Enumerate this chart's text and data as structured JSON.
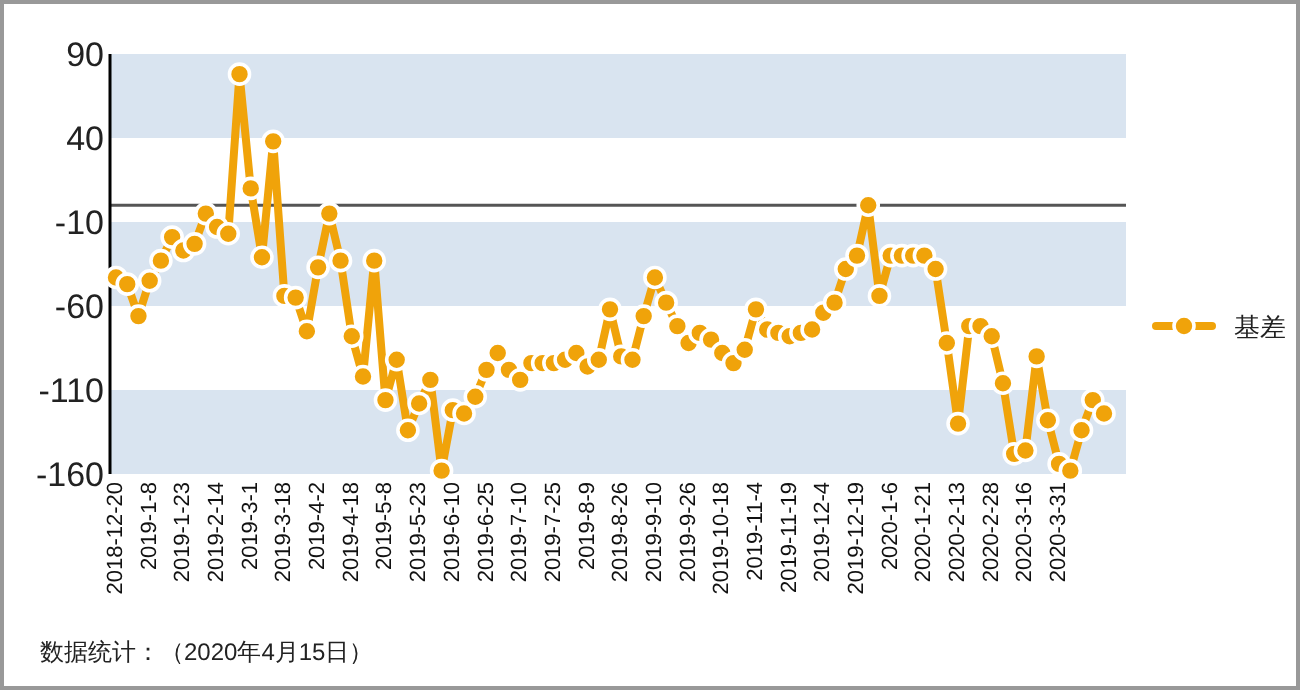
{
  "chart_data": {
    "type": "line",
    "categories": [
      "2018-12-20",
      null,
      null,
      "2019-1-8",
      null,
      null,
      "2019-1-23",
      null,
      null,
      "2019-2-14",
      null,
      null,
      "2019-3-1",
      null,
      null,
      "2019-3-18",
      null,
      null,
      "2019-4-2",
      null,
      null,
      "2019-4-18",
      null,
      null,
      "2019-5-8",
      null,
      null,
      "2019-5-23",
      null,
      null,
      "2019-6-10",
      null,
      null,
      "2019-6-25",
      null,
      null,
      "2019-7-10",
      null,
      null,
      "2019-7-25",
      null,
      null,
      "2019-8-9",
      null,
      null,
      "2019-8-26",
      null,
      null,
      "2019-9-10",
      null,
      null,
      "2019-9-26",
      null,
      null,
      "2019-10-18",
      null,
      null,
      "2019-11-4",
      null,
      null,
      "2019-11-19",
      null,
      null,
      "2019-12-4",
      null,
      null,
      "2019-12-19",
      null,
      null,
      "2020-1-6",
      null,
      null,
      "2020-1-21",
      null,
      null,
      "2020-2-13",
      null,
      null,
      "2020-2-28",
      null,
      null,
      "2020-3-16",
      null,
      null,
      "2020-3-31",
      null,
      null,
      null,
      null
    ],
    "series": [
      {
        "name": "基差",
        "color": "#f0a30a",
        "values": [
          -43,
          -47,
          -66,
          -45,
          -33,
          -19,
          -27,
          -23,
          -5,
          -13,
          -17,
          78,
          10,
          -31,
          38,
          -54,
          -55,
          -75,
          -37,
          -5,
          -33,
          -78,
          -102,
          -33,
          -116,
          -92,
          -134,
          -118,
          -104,
          -158,
          -122,
          -124,
          -114,
          -98,
          -88,
          -98,
          -104,
          -94,
          -94,
          -94,
          -92,
          -88,
          -96,
          -92,
          -62,
          -90,
          -92,
          -66,
          -43,
          -58,
          -72,
          -82,
          -76,
          -80,
          -88,
          -94,
          -86,
          -62,
          -74,
          -76,
          -78,
          -76,
          -74,
          -64,
          -58,
          -38,
          -30,
          0,
          -54,
          -30,
          -30,
          -30,
          -30,
          -38,
          -82,
          -130,
          -72,
          -72,
          -78,
          -106,
          -148,
          -146,
          -90,
          -128,
          -154,
          -158,
          -134,
          -116,
          -124
        ]
      }
    ],
    "ylim": [
      -160,
      90
    ],
    "yticks": [
      -160,
      -110,
      -60,
      -10,
      40,
      90
    ],
    "bands": [
      {
        "axis": "y",
        "from": 40,
        "to": 90,
        "color": "#d9e4f0"
      },
      {
        "axis": "y",
        "from": -60,
        "to": -10,
        "color": "#d9e4f0"
      },
      {
        "axis": "y",
        "from": -160,
        "to": -110,
        "color": "#d9e4f0"
      }
    ],
    "ref_lines": [
      {
        "axis": "y",
        "value": 0,
        "color": "#555555"
      }
    ],
    "marker": "circle",
    "legend": "right",
    "grid": false,
    "annotations": [
      "数据统计：（2020年4月15日）"
    ]
  }
}
